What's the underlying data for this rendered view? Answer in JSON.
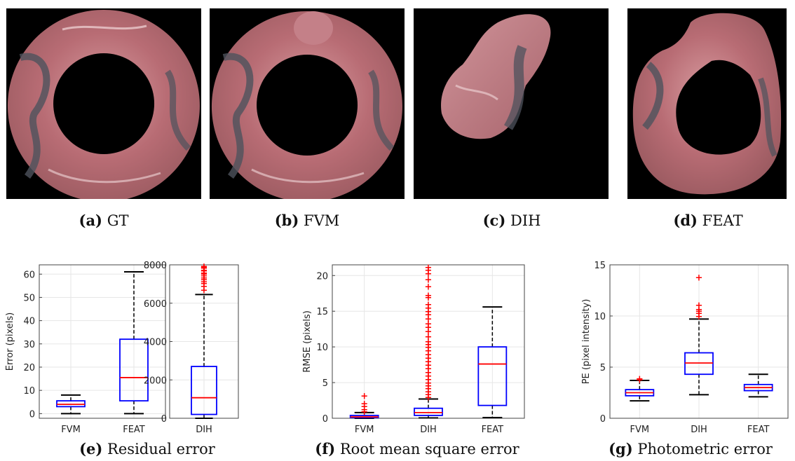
{
  "colors": {
    "box": "#0000ff",
    "median": "#ff0000",
    "outlier": "#ff0000",
    "whisker": "#000000",
    "grid": "#e6e6e6",
    "tissue": "#c07a80"
  },
  "captions": {
    "a": {
      "tag": "(a)",
      "text": "GT"
    },
    "b": {
      "tag": "(b)",
      "text": "FVM"
    },
    "c": {
      "tag": "(c)",
      "text": "DIH"
    },
    "d": {
      "tag": "(d)",
      "text": "FEAT"
    },
    "e": {
      "tag": "(e)",
      "text": "Residual error"
    },
    "f": {
      "tag": "(f)",
      "text": "Root mean square error"
    },
    "g": {
      "tag": "(g)",
      "text": "Photometric error"
    }
  },
  "chart_data": [
    {
      "id": "e-left",
      "type": "box",
      "ylabel": "Error (pixels)",
      "ylim": [
        -2,
        64
      ],
      "yticks": [
        0,
        10,
        20,
        30,
        40,
        50,
        60
      ],
      "grid": true,
      "categories": [
        "FVM",
        "FEAT"
      ],
      "boxes": [
        {
          "label": "FVM",
          "whislo": 0,
          "q1": 3,
          "med": 4,
          "q3": 5.5,
          "whishi": 8,
          "outliers": []
        },
        {
          "label": "FEAT",
          "whislo": 0,
          "q1": 5.5,
          "med": 15.5,
          "q3": 32,
          "whishi": 61,
          "outliers": []
        }
      ]
    },
    {
      "id": "e-right",
      "type": "box",
      "ylabel": "",
      "ylim": [
        0,
        8000
      ],
      "yticks": [
        0,
        2000,
        4000,
        6000,
        8000
      ],
      "grid": true,
      "categories": [
        "DIH"
      ],
      "boxes": [
        {
          "label": "DIH",
          "whislo": 0,
          "q1": 200,
          "med": 1070,
          "q3": 2700,
          "whishi": 6450,
          "outliers": [
            6700,
            6900,
            7050,
            7150,
            7250,
            7350,
            7450,
            7550,
            7600,
            7700,
            7750,
            7850,
            7900,
            7950
          ]
        }
      ]
    },
    {
      "id": "f",
      "type": "box",
      "ylabel": "RMSE (pixels)",
      "ylim": [
        0,
        21.5
      ],
      "yticks": [
        0,
        5,
        10,
        15,
        20
      ],
      "grid": true,
      "categories": [
        "FVM",
        "DIH",
        "FEAT"
      ],
      "boxes": [
        {
          "label": "FVM",
          "whislo": 0,
          "q1": 0.1,
          "med": 0.2,
          "q3": 0.4,
          "whishi": 0.8,
          "outliers": [
            1.0,
            1.3,
            1.7,
            2.1,
            3.2
          ]
        },
        {
          "label": "DIH",
          "whislo": 0.05,
          "q1": 0.4,
          "med": 0.8,
          "q3": 1.4,
          "whishi": 2.7,
          "outliers": [
            3.0,
            3.4,
            3.8,
            4.2,
            4.6,
            5.0,
            5.5,
            6.0,
            6.5,
            7.0,
            7.5,
            8.0,
            8.5,
            9.0,
            9.5,
            10.0,
            10.4,
            10.8,
            11.5,
            12.2,
            12.8,
            13.3,
            14.0,
            14.6,
            15.0,
            15.5,
            16.0,
            17.0,
            17.3,
            18.5,
            19.5,
            20.3,
            20.8,
            21.2
          ]
        },
        {
          "label": "FEAT",
          "whislo": 0.1,
          "q1": 1.8,
          "med": 7.6,
          "q3": 10.0,
          "whishi": 15.6,
          "outliers": []
        }
      ]
    },
    {
      "id": "g",
      "type": "box",
      "ylabel": "PE (pixel intensity)",
      "ylim": [
        0,
        15
      ],
      "yticks": [
        0,
        5,
        10,
        15
      ],
      "grid": true,
      "categories": [
        "FVM",
        "DIH",
        "FEAT"
      ],
      "boxes": [
        {
          "label": "FVM",
          "whislo": 1.7,
          "q1": 2.2,
          "med": 2.5,
          "q3": 2.8,
          "whishi": 3.7,
          "outliers": [
            3.8,
            3.9
          ]
        },
        {
          "label": "DIH",
          "whislo": 2.3,
          "q1": 4.3,
          "med": 5.4,
          "q3": 6.4,
          "whishi": 9.7,
          "outliers": [
            10.0,
            10.3,
            10.5,
            10.7,
            11.1,
            13.8
          ]
        },
        {
          "label": "FEAT",
          "whislo": 2.1,
          "q1": 2.7,
          "med": 3.0,
          "q3": 3.3,
          "whishi": 4.3,
          "outliers": []
        }
      ]
    }
  ]
}
